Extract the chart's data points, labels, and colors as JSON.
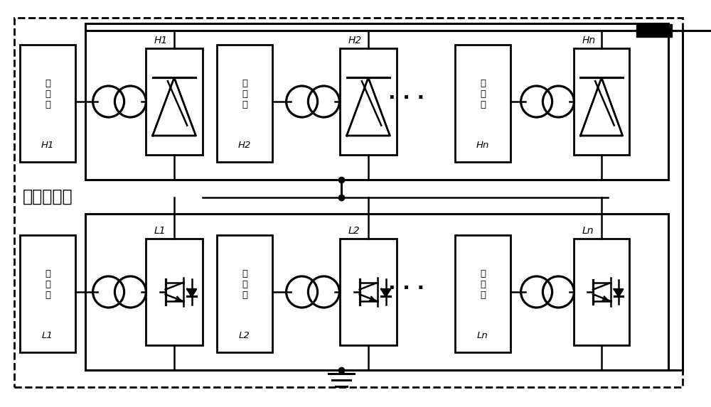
{
  "bg_color": "#ffffff",
  "fig_width": 10.0,
  "fig_height": 5.73,
  "label_jilian": "级联换流阀",
  "units_H_labels": [
    "H1",
    "H2",
    "Hn"
  ],
  "units_L_labels": [
    "L1",
    "L2",
    "Ln"
  ],
  "ac_labels_H": [
    "交\n流\n端\nH1",
    "交\n流\n端\nH2",
    "交\n流\n端\nHn"
  ],
  "ac_labels_L": [
    "交\n流\n端\nL1",
    "交\n流\n端\nL2",
    "交\n流\n端\nLn"
  ]
}
